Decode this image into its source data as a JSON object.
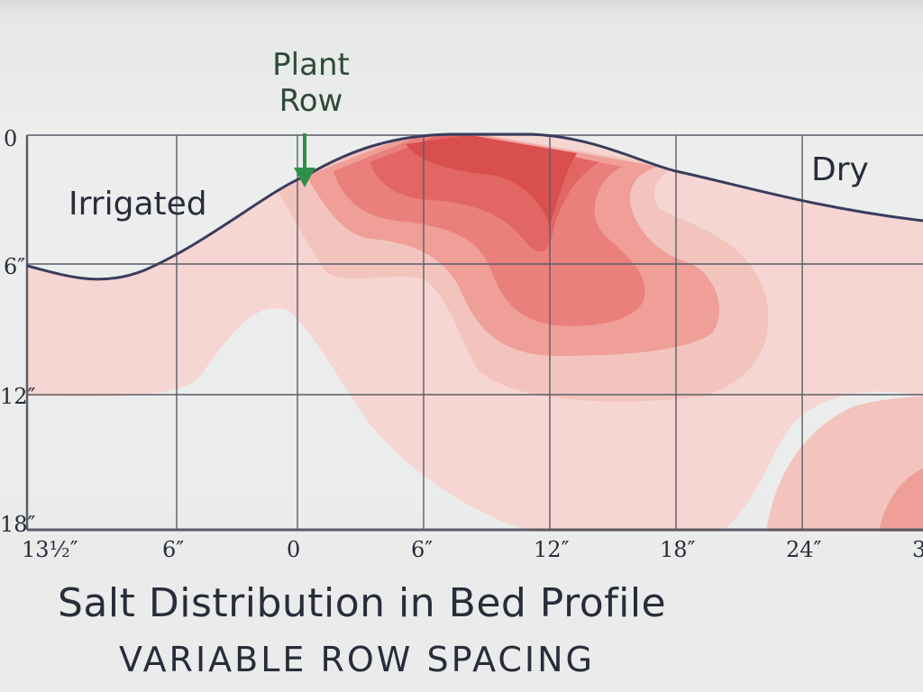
{
  "plant_row": {
    "line1": "Plant",
    "line2": "Row"
  },
  "region_labels": {
    "left": "Irrigated",
    "right": "Dry"
  },
  "y_axis_labels": [
    "0",
    "6″",
    "12″",
    "18″"
  ],
  "x_axis_labels": [
    "13½″",
    "6″",
    "0",
    "6″",
    "12″",
    "18″",
    "24″",
    "3"
  ],
  "title": "Salt Distribution in Bed Profile",
  "subtitle": "VARIABLE ROW SPACING",
  "colors": {
    "background": "#e9ebea",
    "grid": "#5a5c66",
    "outline": "#3a3d5c",
    "arrow": "#2e8f46",
    "salt_level_1": "#f6d6d2",
    "salt_level_2": "#f3c4be",
    "salt_level_3": "#ef9e98",
    "salt_level_4": "#ea807b",
    "salt_level_5": "#e26664",
    "salt_level_6": "#d94e4e"
  }
}
